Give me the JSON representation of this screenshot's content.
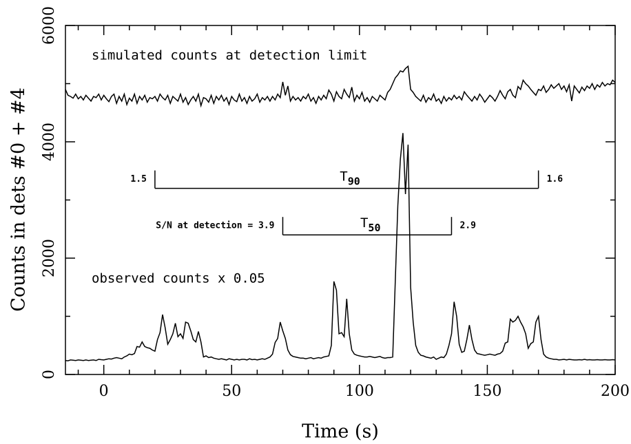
{
  "chart_data": {
    "type": "line",
    "xlabel": "Time (s)",
    "ylabel": "Counts in dets #0 + #4",
    "xlim": [
      -15,
      200
    ],
    "xticks": [
      0,
      50,
      100,
      150,
      200
    ],
    "x_minor_ticks": [
      -10,
      10,
      20,
      30,
      40,
      60,
      70,
      80,
      90,
      110,
      120,
      130,
      140,
      160,
      170,
      180,
      190
    ],
    "ylim": [
      0,
      6000
    ],
    "yticks": [
      0,
      2000,
      4000,
      6000
    ],
    "y_minor_ticks": [
      1000,
      3000,
      5000
    ],
    "annotations": [
      "simulated counts at detection limit",
      "observed counts x 0.05"
    ],
    "intervals": [
      {
        "name": "T",
        "sub": "90",
        "start": 20,
        "end": 170,
        "y": 3200,
        "left_label": "1.5",
        "right_label": "1.6"
      },
      {
        "name": "T",
        "sub": "50",
        "start": 70,
        "end": 136,
        "y": 2400,
        "left_label": "S/N at detection = 3.9",
        "right_label": "2.9"
      }
    ],
    "x": [
      -15,
      -14,
      -13,
      -12,
      -11,
      -10,
      -9,
      -8,
      -7,
      -6,
      -5,
      -4,
      -3,
      -2,
      -1,
      0,
      1,
      2,
      3,
      4,
      5,
      6,
      7,
      8,
      9,
      10,
      11,
      12,
      13,
      14,
      15,
      16,
      17,
      18,
      19,
      20,
      21,
      22,
      23,
      24,
      25,
      26,
      27,
      28,
      29,
      30,
      31,
      32,
      33,
      34,
      35,
      36,
      37,
      38,
      39,
      40,
      41,
      42,
      43,
      44,
      45,
      46,
      47,
      48,
      49,
      50,
      51,
      52,
      53,
      54,
      55,
      56,
      57,
      58,
      59,
      60,
      61,
      62,
      63,
      64,
      65,
      66,
      67,
      68,
      69,
      70,
      71,
      72,
      73,
      74,
      75,
      76,
      77,
      78,
      79,
      80,
      81,
      82,
      83,
      84,
      85,
      86,
      87,
      88,
      89,
      90,
      91,
      92,
      93,
      94,
      95,
      96,
      97,
      98,
      99,
      100,
      101,
      102,
      103,
      104,
      105,
      106,
      107,
      108,
      109,
      110,
      111,
      112,
      113,
      114,
      115,
      116,
      117,
      118,
      119,
      120,
      121,
      122,
      123,
      124,
      125,
      126,
      127,
      128,
      129,
      130,
      131,
      132,
      133,
      134,
      135,
      136,
      137,
      138,
      139,
      140,
      141,
      142,
      143,
      144,
      145,
      146,
      147,
      148,
      149,
      150,
      151,
      152,
      153,
      154,
      155,
      156,
      157,
      158,
      159,
      160,
      161,
      162,
      163,
      164,
      165,
      166,
      167,
      168,
      169,
      170,
      171,
      172,
      173,
      174,
      175,
      176,
      177,
      178,
      179,
      180,
      181,
      182,
      183,
      184,
      185,
      186,
      187,
      188,
      189,
      190,
      191,
      192,
      193,
      194,
      195,
      196,
      197,
      198,
      199,
      200
    ],
    "series": [
      {
        "color": "#000000",
        "values": [
          4900,
          4800,
          4780,
          4750,
          4820,
          4740,
          4780,
          4720,
          4800,
          4750,
          4700,
          4780,
          4760,
          4820,
          4720,
          4800,
          4740,
          4690,
          4780,
          4820,
          4660,
          4780,
          4700,
          4820,
          4640,
          4750,
          4700,
          4820,
          4660,
          4780,
          4720,
          4800,
          4680,
          4760,
          4740,
          4780,
          4700,
          4820,
          4760,
          4720,
          4800,
          4660,
          4780,
          4740,
          4700,
          4820,
          4680,
          4760,
          4640,
          4720,
          4780,
          4700,
          4820,
          4620,
          4760,
          4740,
          4680,
          4800,
          4660,
          4780,
          4720,
          4800,
          4700,
          4760,
          4640,
          4780,
          4720,
          4690,
          4820,
          4700,
          4760,
          4660,
          4780,
          4700,
          4740,
          4820,
          4680,
          4760,
          4720,
          4780,
          4700,
          4780,
          4720,
          4820,
          4760,
          5030,
          4800,
          4960,
          4700,
          4780,
          4720,
          4760,
          4700,
          4780,
          4740,
          4820,
          4700,
          4760,
          4660,
          4780,
          4720,
          4800,
          4740,
          4890,
          4820,
          4700,
          4860,
          4780,
          4740,
          4900,
          4820,
          4760,
          4940,
          4700,
          4800,
          4740,
          4850,
          4700,
          4760,
          4680,
          4780,
          4740,
          4700,
          4800,
          4760,
          4720,
          4850,
          4900,
          5000,
          5100,
          5150,
          5220,
          5200,
          5260,
          5300,
          4900,
          4850,
          4780,
          4740,
          4700,
          4800,
          4680,
          4760,
          4720,
          4820,
          4700,
          4740,
          4660,
          4780,
          4700,
          4760,
          4720,
          4800,
          4740,
          4780,
          4720,
          4860,
          4800,
          4750,
          4700,
          4780,
          4720,
          4820,
          4760,
          4680,
          4740,
          4800,
          4760,
          4700,
          4780,
          4880,
          4800,
          4740,
          4860,
          4900,
          4800,
          4760,
          4950,
          4900,
          5060,
          5000,
          4960,
          4900,
          4850,
          4800,
          4900,
          4880,
          4960,
          4850,
          4900,
          4980,
          4920,
          4960,
          5000,
          4900,
          4960,
          4860,
          4980,
          4700,
          4960,
          4900,
          4840,
          4940,
          4880,
          4960,
          4920,
          5000,
          4900,
          4980,
          4940,
          5020,
          4960,
          5000,
          4980,
          5060,
          5020
        ]
      },
      {
        "color": "#000000",
        "values": [
          240,
          235,
          250,
          245,
          240,
          250,
          245,
          240,
          250,
          240,
          245,
          250,
          240,
          260,
          255,
          250,
          260,
          270,
          265,
          280,
          290,
          280,
          270,
          300,
          320,
          350,
          340,
          360,
          480,
          470,
          560,
          480,
          460,
          450,
          420,
          400,
          600,
          720,
          1030,
          800,
          520,
          600,
          700,
          880,
          650,
          700,
          620,
          900,
          880,
          750,
          600,
          560,
          740,
          560,
          300,
          320,
          290,
          300,
          280,
          270,
          260,
          270,
          260,
          250,
          270,
          260,
          250,
          260,
          250,
          260,
          260,
          250,
          270,
          255,
          260,
          250,
          260,
          270,
          260,
          280,
          300,
          350,
          550,
          620,
          900,
          750,
          620,
          420,
          340,
          310,
          300,
          290,
          280,
          280,
          270,
          280,
          290,
          270,
          280,
          290,
          280,
          300,
          310,
          320,
          500,
          1600,
          1450,
          700,
          720,
          650,
          1300,
          700,
          420,
          350,
          330,
          320,
          310,
          300,
          300,
          310,
          300,
          290,
          300,
          310,
          290,
          280,
          290,
          290,
          300,
          1600,
          2900,
          3700,
          4150,
          3100,
          3950,
          1500,
          900,
          500,
          380,
          330,
          320,
          300,
          290,
          280,
          300,
          260,
          280,
          300,
          290,
          350,
          500,
          700,
          1250,
          1000,
          520,
          380,
          400,
          600,
          850,
          600,
          420,
          360,
          350,
          340,
          330,
          340,
          350,
          340,
          330,
          350,
          360,
          400,
          540,
          560,
          950,
          900,
          930,
          1000,
          900,
          820,
          700,
          450,
          530,
          560,
          900,
          1000,
          600,
          350,
          300,
          280,
          270,
          260,
          260,
          250,
          255,
          260,
          250,
          260,
          255,
          250,
          250,
          255,
          250,
          260,
          250,
          255,
          250,
          250,
          255,
          250,
          250,
          255,
          250,
          250,
          255,
          250
        ]
      }
    ]
  }
}
